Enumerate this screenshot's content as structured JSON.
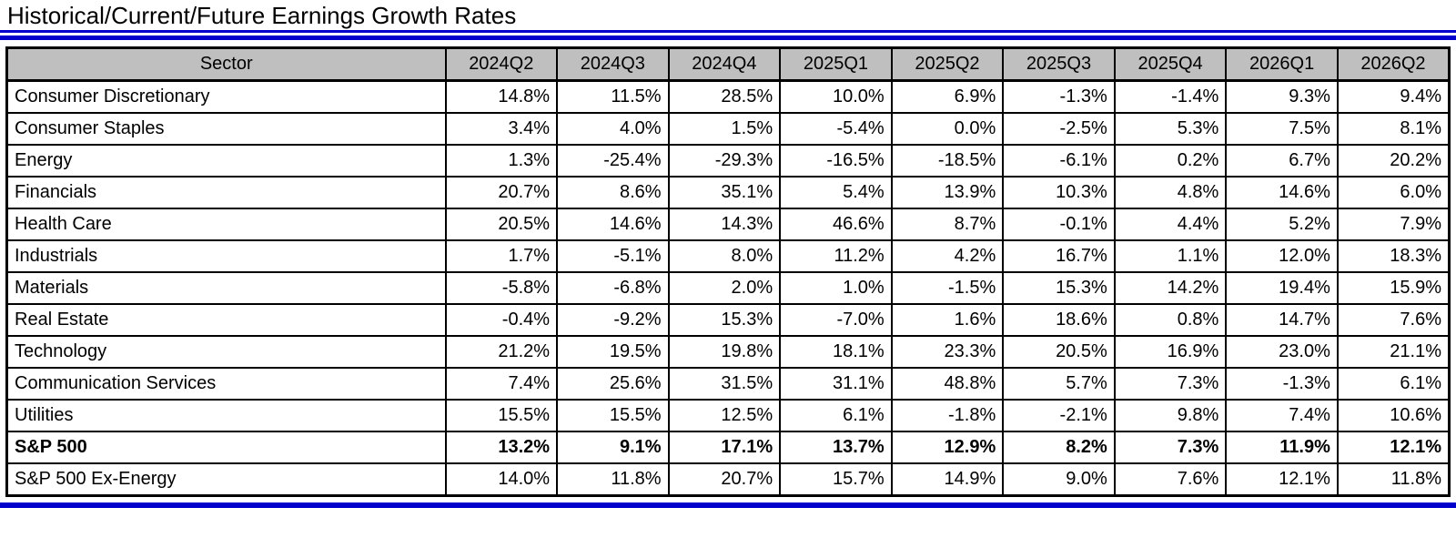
{
  "title": "Historical/Current/Future Earnings Growth Rates",
  "colors": {
    "accent_blue": "#0000CC",
    "header_gray": "#BFBFBF",
    "border_black": "#000000",
    "background": "#FFFFFF"
  },
  "chart_data": {
    "type": "table",
    "title": "Historical/Current/Future Earnings Growth Rates",
    "columns": [
      "Sector",
      "2024Q2",
      "2024Q3",
      "2024Q4",
      "2025Q1",
      "2025Q2",
      "2025Q3",
      "2025Q4",
      "2026Q1",
      "2026Q2"
    ],
    "rows": [
      {
        "sector": "Consumer Discretionary",
        "bold": false,
        "values": [
          "14.8%",
          "11.5%",
          "28.5%",
          "10.0%",
          "6.9%",
          "-1.3%",
          "-1.4%",
          "9.3%",
          "9.4%"
        ]
      },
      {
        "sector": "Consumer Staples",
        "bold": false,
        "values": [
          "3.4%",
          "4.0%",
          "1.5%",
          "-5.4%",
          "0.0%",
          "-2.5%",
          "5.3%",
          "7.5%",
          "8.1%"
        ]
      },
      {
        "sector": "Energy",
        "bold": false,
        "values": [
          "1.3%",
          "-25.4%",
          "-29.3%",
          "-16.5%",
          "-18.5%",
          "-6.1%",
          "0.2%",
          "6.7%",
          "20.2%"
        ]
      },
      {
        "sector": "Financials",
        "bold": false,
        "values": [
          "20.7%",
          "8.6%",
          "35.1%",
          "5.4%",
          "13.9%",
          "10.3%",
          "4.8%",
          "14.6%",
          "6.0%"
        ]
      },
      {
        "sector": "Health Care",
        "bold": false,
        "values": [
          "20.5%",
          "14.6%",
          "14.3%",
          "46.6%",
          "8.7%",
          "-0.1%",
          "4.4%",
          "5.2%",
          "7.9%"
        ]
      },
      {
        "sector": "Industrials",
        "bold": false,
        "values": [
          "1.7%",
          "-5.1%",
          "8.0%",
          "11.2%",
          "4.2%",
          "16.7%",
          "1.1%",
          "12.0%",
          "18.3%"
        ]
      },
      {
        "sector": "Materials",
        "bold": false,
        "values": [
          "-5.8%",
          "-6.8%",
          "2.0%",
          "1.0%",
          "-1.5%",
          "15.3%",
          "14.2%",
          "19.4%",
          "15.9%"
        ]
      },
      {
        "sector": "Real Estate",
        "bold": false,
        "values": [
          "-0.4%",
          "-9.2%",
          "15.3%",
          "-7.0%",
          "1.6%",
          "18.6%",
          "0.8%",
          "14.7%",
          "7.6%"
        ]
      },
      {
        "sector": "Technology",
        "bold": false,
        "values": [
          "21.2%",
          "19.5%",
          "19.8%",
          "18.1%",
          "23.3%",
          "20.5%",
          "16.9%",
          "23.0%",
          "21.1%"
        ]
      },
      {
        "sector": "Communication Services",
        "bold": false,
        "values": [
          "7.4%",
          "25.6%",
          "31.5%",
          "31.1%",
          "48.8%",
          "5.7%",
          "7.3%",
          "-1.3%",
          "6.1%"
        ]
      },
      {
        "sector": "Utilities",
        "bold": false,
        "values": [
          "15.5%",
          "15.5%",
          "12.5%",
          "6.1%",
          "-1.8%",
          "-2.1%",
          "9.8%",
          "7.4%",
          "10.6%"
        ]
      },
      {
        "sector": "S&P 500",
        "bold": true,
        "values": [
          "13.2%",
          "9.1%",
          "17.1%",
          "13.7%",
          "12.9%",
          "8.2%",
          "7.3%",
          "11.9%",
          "12.1%"
        ]
      },
      {
        "sector": "S&P 500 Ex-Energy",
        "bold": false,
        "values": [
          "14.0%",
          "11.8%",
          "20.7%",
          "15.7%",
          "14.9%",
          "9.0%",
          "7.6%",
          "12.1%",
          "11.8%"
        ]
      }
    ]
  }
}
